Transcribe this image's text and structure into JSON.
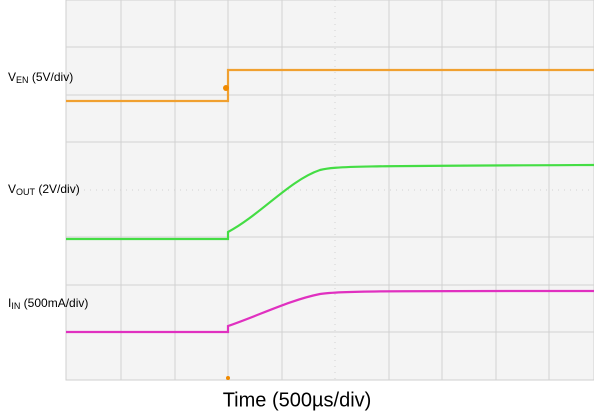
{
  "traces": [
    {
      "label": "V",
      "sub": "EN",
      "scale": "(5V/div)"
    },
    {
      "label": "V",
      "sub": "OUT",
      "scale": "(2V/div)"
    },
    {
      "label": "I",
      "sub": "IN",
      "scale": "(500mA/div)"
    }
  ],
  "x_axis_label": "Time (500µs/div)"
}
